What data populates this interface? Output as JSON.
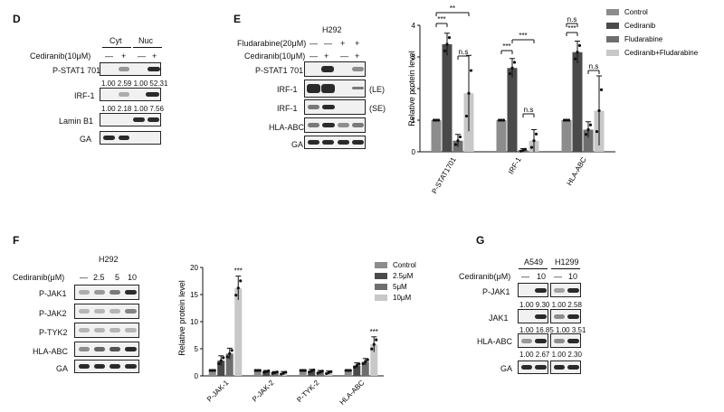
{
  "panels": [
    {
      "id": "D",
      "label": "D",
      "groups": [
        "Cyt",
        "Nuc"
      ],
      "treatment_label": "Cediranib(10μM)",
      "treatment_values": [
        "—",
        "+",
        "—",
        "+"
      ],
      "rows": [
        {
          "label": "P-STAT1 701",
          "quant": "1.00 2.59  1.00 52.31"
        },
        {
          "label": "IRF-1",
          "quant": "1.00 2.18  1.00 7.56"
        },
        {
          "label": "Lamin B1",
          "quant": ""
        },
        {
          "label": "GA",
          "quant": ""
        }
      ]
    },
    {
      "id": "E",
      "label": "E",
      "cell_line": "H292",
      "conditions": [
        {
          "label": "Fludarabine(20μM)",
          "values": [
            "—",
            "—",
            "+",
            "+"
          ]
        },
        {
          "label": "Cediranib(10μM)",
          "values": [
            "—",
            "+",
            "—",
            "+"
          ]
        }
      ],
      "rows": [
        {
          "label": "P-STAT1 701",
          "note": ""
        },
        {
          "label": "IRF-1",
          "note": "(LE)"
        },
        {
          "label": "IRF-1",
          "note": "(SE)"
        },
        {
          "label": "HLA-ABC",
          "note": ""
        },
        {
          "label": "GA",
          "note": ""
        }
      ]
    },
    {
      "id": "F",
      "label": "F",
      "cell_line": "H292",
      "treatment_label": "Cediranib(μM)",
      "treatment_values": [
        "—",
        "2.5",
        "5",
        "10"
      ],
      "rows": [
        {
          "label": "P-JAK1"
        },
        {
          "label": "P-JAK2"
        },
        {
          "label": "P-TYK2"
        },
        {
          "label": "HLA-ABC"
        },
        {
          "label": "GA"
        }
      ]
    },
    {
      "id": "G",
      "label": "G",
      "cell_lines": [
        "A549",
        "H1299"
      ],
      "treatment_label": "Cediranib(μM)",
      "treatment_values": [
        "—",
        "10",
        "—",
        "10"
      ],
      "rows": [
        {
          "label": "P-JAK1",
          "quant": "1.00  9.30   1.00  2.58"
        },
        {
          "label": "JAK1",
          "quant": "1.00 16.85  1.00  3.51"
        },
        {
          "label": "HLA-ABC",
          "quant": "1.00  2.67   1.00  2.30"
        },
        {
          "label": "GA",
          "quant": ""
        }
      ]
    }
  ],
  "chart_data": [
    {
      "id": "E-chart",
      "type": "bar",
      "ylabel": "Relative protein level",
      "xlabel": "",
      "ylim": [
        0,
        4
      ],
      "yticks": [
        "0",
        "1",
        "2",
        "3",
        "4"
      ],
      "categories": [
        "P-STAT1701",
        "IRF-1",
        "HLA-ABC"
      ],
      "series": [
        {
          "name": "Control",
          "color": "#8c8c8c",
          "values": [
            1.0,
            1.0,
            1.0
          ],
          "errors": [
            0,
            0,
            0
          ]
        },
        {
          "name": "Cediranib",
          "color": "#4a4a4a",
          "values": [
            3.4,
            2.65,
            3.15
          ],
          "errors": [
            0.35,
            0.3,
            0.35
          ]
        },
        {
          "name": "Fludarabine",
          "color": "#6e6e6e",
          "values": [
            0.35,
            0.05,
            0.7
          ],
          "errors": [
            0.2,
            0.05,
            0.25
          ]
        },
        {
          "name": "Cediranib+Fludarabine",
          "color": "#c8c8c8",
          "values": [
            1.85,
            0.35,
            1.3
          ],
          "errors": [
            1.2,
            0.35,
            1.1
          ]
        }
      ],
      "significance": [
        "***",
        "**",
        "n.s",
        "***",
        "***",
        "n.s",
        "n.s",
        "***",
        "n.s"
      ]
    },
    {
      "id": "F-chart",
      "type": "bar",
      "ylabel": "Relative protein level",
      "xlabel": "",
      "ylim": [
        0,
        20
      ],
      "yticks": [
        "0",
        "5",
        "10",
        "15",
        "20"
      ],
      "categories": [
        "P-JAK-1",
        "P-JAK-2",
        "P-TYK-2",
        "HLA-ABC"
      ],
      "series": [
        {
          "name": "Control",
          "color": "#8c8c8c",
          "values": [
            1.0,
            1.0,
            1.0,
            1.0
          ],
          "errors": [
            0,
            0,
            0,
            0
          ]
        },
        {
          "name": "2.5μM",
          "color": "#4a4a4a",
          "values": [
            2.8,
            0.8,
            0.9,
            1.9
          ],
          "errors": [
            0.9,
            0.2,
            0.3,
            0.5
          ]
        },
        {
          "name": "5μM",
          "color": "#6e6e6e",
          "values": [
            4.1,
            0.6,
            0.7,
            2.6
          ],
          "errors": [
            1.0,
            0.2,
            0.3,
            0.6
          ]
        },
        {
          "name": "10μM",
          "color": "#c8c8c8",
          "values": [
            16.2,
            0.5,
            0.6,
            5.8
          ],
          "errors": [
            2.2,
            0.3,
            0.3,
            1.4
          ]
        }
      ],
      "significance": [
        "***",
        "***"
      ]
    }
  ]
}
